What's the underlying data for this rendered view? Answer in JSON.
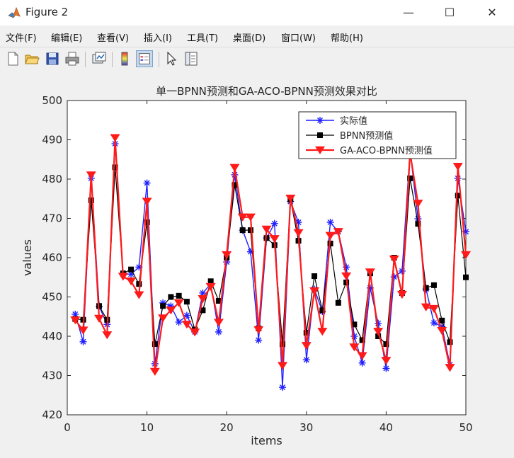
{
  "window": {
    "title": "Figure 2",
    "minimize_glyph": "—",
    "maximize_glyph": "☐",
    "close_glyph": "✕"
  },
  "menu": [
    "文件(F)",
    "编辑(E)",
    "查看(V)",
    "插入(I)",
    "工具(T)",
    "桌面(D)",
    "窗口(W)",
    "帮助(H)"
  ],
  "toolbar": {
    "icons": [
      "new-figure-icon",
      "open-file-icon",
      "save-icon",
      "print-icon",
      "link-plot-icon",
      "colorbar-icon",
      "legend-icon",
      "pointer-icon",
      "property-inspector-icon"
    ],
    "selected": "legend-icon"
  },
  "colors": {
    "actual": "#1f1fff",
    "bpnn": "#000000",
    "gaaco": "#ff1a1a",
    "axes_bg": "#ffffff",
    "figure_bg": "#f0f0f0"
  },
  "chart_data": {
    "type": "line",
    "title": "单一BPNN预测和GA-ACO-BPNN预测效果对比",
    "xlabel": "items",
    "ylabel": "values",
    "xlim": [
      0,
      50
    ],
    "ylim": [
      420,
      500
    ],
    "xticks": [
      0,
      10,
      20,
      30,
      40,
      50
    ],
    "yticks": [
      420,
      430,
      440,
      450,
      460,
      470,
      480,
      490,
      500
    ],
    "grid": false,
    "legend_position": "top-right",
    "x": [
      1,
      2,
      3,
      4,
      5,
      6,
      7,
      8,
      9,
      10,
      11,
      12,
      13,
      14,
      15,
      16,
      17,
      18,
      19,
      20,
      21,
      22,
      23,
      24,
      25,
      26,
      27,
      28,
      29,
      30,
      31,
      32,
      33,
      34,
      35,
      36,
      37,
      38,
      39,
      40,
      41,
      42,
      43,
      44,
      45,
      46,
      47,
      48,
      49,
      50
    ],
    "series": [
      {
        "name": "实际值",
        "marker": "star",
        "values": [
          445.6,
          438.6,
          480.2,
          447.6,
          443.0,
          489.0,
          455.8,
          455.8,
          457.6,
          479.0,
          433.0,
          448.5,
          447.7,
          443.6,
          445.3,
          441.1,
          451.0,
          453.3,
          441.1,
          458.9,
          481.1,
          467.0,
          461.5,
          439.0,
          465.0,
          468.7,
          427.0,
          474.3,
          469.0,
          434.0,
          452.0,
          446.3,
          469.0,
          466.6,
          457.6,
          440.0,
          433.2,
          452.3,
          443.3,
          431.8,
          455.1,
          456.6,
          487.3,
          469.9,
          452.0,
          443.4,
          442.5,
          432.8,
          480.2,
          466.6
        ]
      },
      {
        "name": "BPNN预测值",
        "marker": "square",
        "values": [
          444.4,
          444.2,
          474.6,
          447.7,
          444.2,
          483.0,
          456.0,
          457.0,
          453.3,
          469.0,
          438.0,
          447.7,
          450.0,
          450.3,
          448.8,
          441.7,
          446.6,
          454.0,
          449.0,
          460.0,
          478.5,
          467.0,
          467.0,
          442.0,
          465.0,
          463.2,
          438.0,
          474.8,
          464.3,
          440.9,
          455.3,
          446.6,
          463.6,
          448.5,
          453.7,
          443.0,
          439.0,
          456.0,
          440.0,
          438.0,
          460.0,
          451.0,
          480.2,
          468.6,
          452.3,
          453.0,
          444.0,
          438.5,
          475.8,
          455.0
        ]
      },
      {
        "name": "GA-ACO-BPNN预测值",
        "marker": "triangle-down",
        "values": [
          444.1,
          441.5,
          481.0,
          444.5,
          440.3,
          490.5,
          455.2,
          454.0,
          450.5,
          474.3,
          431.0,
          444.6,
          446.6,
          448.5,
          443.0,
          441.0,
          449.5,
          452.6,
          443.5,
          460.7,
          482.9,
          470.3,
          470.3,
          441.6,
          467.2,
          464.8,
          432.5,
          475.1,
          466.3,
          437.6,
          451.5,
          441.2,
          465.6,
          466.6,
          455.3,
          437.2,
          435.0,
          456.3,
          441.2,
          433.8,
          459.6,
          450.6,
          486.7,
          473.8,
          447.4,
          447.0,
          441.4,
          432.0,
          483.2,
          460.7
        ]
      }
    ]
  }
}
